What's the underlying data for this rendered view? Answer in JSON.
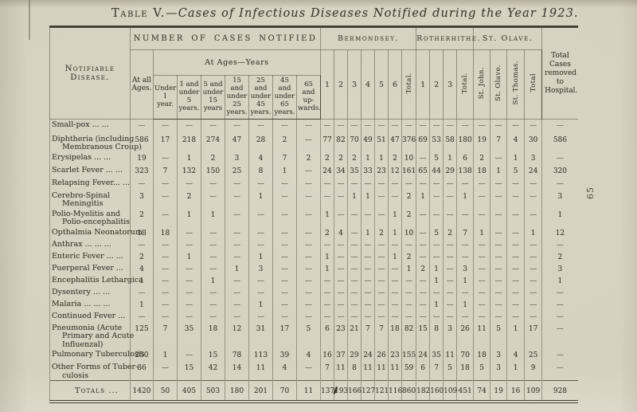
{
  "page": {
    "page_number": "65"
  },
  "title": {
    "prefix": "Table V.",
    "rest": "—Cases of Infectious Diseases Notified during the Year 1923."
  },
  "table": {
    "header": {
      "disease_col": "Notifiable Disease.",
      "cases_notified": "NUMBER OF CASES NOTIFIED",
      "at_all_ages": "At all Ages.",
      "at_ages_years": "At Ages—Years",
      "age_labels": [
        "Under 1 year.",
        "1 and under 5 years.",
        "5 and under 15 years",
        "15 and under 25 years.",
        "25 and under 45 years.",
        "45 and under 65 years.",
        "65 and up- wards."
      ],
      "bermondsey": {
        "label": "Bermondsey.",
        "cols": [
          "1",
          "2",
          "3",
          "4",
          "5",
          "6",
          "Total."
        ]
      },
      "rotherhithe": {
        "label": "Rotherhithe.",
        "cols": [
          "1",
          "2",
          "3",
          "Total."
        ]
      },
      "st_olave": {
        "label": "St. Olave.",
        "cols": [
          "St. John.",
          "St. Olave.",
          "St. Thomas.",
          "Total"
        ]
      },
      "removed": "Total Cases removed to Hospital."
    },
    "rows": [
      {
        "label_lines": [
          "Small-pox ... ..."
        ],
        "cells": [
          "—",
          "—",
          "—",
          "—",
          "—",
          "—",
          "—",
          "—",
          "—",
          "—",
          "—",
          "—",
          "—",
          "—",
          "—",
          "—",
          "—",
          "—",
          "—",
          "—",
          "—",
          "—",
          "—",
          "—"
        ]
      },
      {
        "label_lines": [
          "Diphtheria (including",
          "Membranous Croup)"
        ],
        "cells": [
          "586",
          "17",
          "218",
          "274",
          "47",
          "28",
          "2",
          "—",
          "77",
          "82",
          "70",
          "49",
          "51",
          "47",
          "376",
          "69",
          "53",
          "58",
          "180",
          "19",
          "7",
          "4",
          "30",
          "586"
        ]
      },
      {
        "label_lines": [
          "Erysipelas ... ..."
        ],
        "cells": [
          "19",
          "—",
          "1",
          "2",
          "3",
          "4",
          "7",
          "2",
          "2",
          "2",
          "2",
          "1",
          "1",
          "2",
          "10",
          "—",
          "5",
          "1",
          "6",
          "2",
          "—",
          "1",
          "3",
          "—"
        ]
      },
      {
        "label_lines": [
          "Scarlet Fever ... ..."
        ],
        "cells": [
          "323",
          "7",
          "132",
          "150",
          "25",
          "8",
          "1",
          "—",
          "24",
          "34",
          "35",
          "33",
          "23",
          "12",
          "161",
          "65",
          "44",
          "29",
          "138",
          "18",
          "1",
          "5",
          "24",
          "320"
        ]
      },
      {
        "label_lines": [
          "Relapsing Fever... ..."
        ],
        "cells": [
          "—",
          "—",
          "—",
          "—",
          "—",
          "—",
          "—",
          "—",
          "—",
          "—",
          "—",
          "—",
          "—",
          "—",
          "—",
          "—",
          "—",
          "—",
          "—",
          "—",
          "—",
          "—",
          "—",
          "—"
        ]
      },
      {
        "label_lines": [
          "Cerebro-Spinal",
          "Meningitis"
        ],
        "cells": [
          "3",
          "—",
          "2",
          "—",
          "—",
          "1",
          "—",
          "—",
          "—",
          "—",
          "1",
          "1",
          "—",
          "—",
          "2",
          "1",
          "—",
          "—",
          "1",
          "—",
          "—",
          "—",
          "—",
          "3"
        ]
      },
      {
        "label_lines": [
          "Polio-Myelitis and",
          "Polio-encephalitis"
        ],
        "cells": [
          "2",
          "—",
          "1",
          "1",
          "—",
          "—",
          "—",
          "—",
          "1",
          "—",
          "—",
          "—",
          "—",
          "1",
          "2",
          "—",
          "—",
          "—",
          "—",
          "—",
          "—",
          "—",
          "—",
          "1"
        ]
      },
      {
        "label_lines": [
          "Opthalmia Neonatorum"
        ],
        "cells": [
          "18",
          "18",
          "—",
          "—",
          "—",
          "—",
          "—",
          "—",
          "2",
          "4",
          "—",
          "1",
          "2",
          "1",
          "10",
          "—",
          "5",
          "2",
          "7",
          "1",
          "—",
          "—",
          "1",
          "12"
        ]
      },
      {
        "label_lines": [
          "Anthrax ... ... ..."
        ],
        "cells": [
          "—",
          "—",
          "—",
          "—",
          "—",
          "—",
          "—",
          "—",
          "—",
          "—",
          "—",
          "—",
          "—",
          "—",
          "—",
          "—",
          "—",
          "—",
          "—",
          "—",
          "—",
          "—",
          "—",
          "—"
        ]
      },
      {
        "label_lines": [
          "Enteric Fever ... ..."
        ],
        "cells": [
          "2",
          "—",
          "1",
          "—",
          "—",
          "1",
          "—",
          "—",
          "1",
          "—",
          "—",
          "—",
          "—",
          "1",
          "2",
          "—",
          "—",
          "—",
          "—",
          "—",
          "—",
          "—",
          "—",
          "2"
        ]
      },
      {
        "label_lines": [
          "Puerperal Fever ..."
        ],
        "cells": [
          "4",
          "—",
          "—",
          "—",
          "1",
          "3",
          "—",
          "—",
          "1",
          "—",
          "—",
          "—",
          "—",
          "—",
          "1",
          "2",
          "1",
          "—",
          "3",
          "—",
          "—",
          "—",
          "—",
          "3"
        ]
      },
      {
        "label_lines": [
          "Encephalitis Lethargica"
        ],
        "cells": [
          "1",
          "—",
          "—",
          "1",
          "—",
          "—",
          "—",
          "—",
          "—",
          "—",
          "—",
          "—",
          "—",
          "—",
          "—",
          "—",
          "1",
          "—",
          "1",
          "—",
          "—",
          "—",
          "—",
          "1"
        ]
      },
      {
        "label_lines": [
          "Dysentery ... ..."
        ],
        "cells": [
          "—",
          "—",
          "—",
          "—",
          "—",
          "—",
          "—",
          "—",
          "—",
          "—",
          "—",
          "—",
          "—",
          "—",
          "—",
          "—",
          "—",
          "—",
          "—",
          "—",
          "—",
          "—",
          "—",
          "—"
        ]
      },
      {
        "label_lines": [
          "Malaria ... ... ..."
        ],
        "cells": [
          "1",
          "—",
          "—",
          "—",
          "—",
          "1",
          "—",
          "—",
          "—",
          "—",
          "—",
          "—",
          "—",
          "—",
          "—",
          "—",
          "1",
          "—",
          "1",
          "—",
          "—",
          "—",
          "—",
          "—"
        ]
      },
      {
        "label_lines": [
          "Continued Fever ..."
        ],
        "cells": [
          "—",
          "—",
          "—",
          "—",
          "—",
          "—",
          "—",
          "—",
          "—",
          "—",
          "—",
          "—",
          "—",
          "—",
          "—",
          "—",
          "—",
          "—",
          "—",
          "—",
          "—",
          "—",
          "—",
          "—"
        ]
      },
      {
        "label_lines": [
          "Pneumonia (Acute",
          "Primary and Acute",
          "Influenzal)"
        ],
        "cells": [
          "125",
          "7",
          "35",
          "18",
          "12",
          "31",
          "17",
          "5",
          "6",
          "23",
          "21",
          "7",
          "7",
          "18",
          "82",
          "15",
          "8",
          "3",
          "26",
          "11",
          "5",
          "1",
          "17",
          "—"
        ]
      },
      {
        "label_lines": [
          "Pulmonary Tuberculosis"
        ],
        "cells": [
          "250",
          "1",
          "—",
          "15",
          "78",
          "113",
          "39",
          "4",
          "16",
          "37",
          "29",
          "24",
          "26",
          "23",
          "155",
          "24",
          "35",
          "11",
          "70",
          "18",
          "3",
          "4",
          "25",
          "—"
        ]
      },
      {
        "label_lines": [
          "Other Forms of Tuber-",
          "culosis"
        ],
        "cells": [
          "86",
          "—",
          "15",
          "42",
          "14",
          "11",
          "4",
          "—",
          "7",
          "11",
          "8",
          "11",
          "11",
          "11",
          "59",
          "6",
          "7",
          "5",
          "18",
          "5",
          "3",
          "1",
          "9",
          "—"
        ]
      },
      {
        "totals": true,
        "label_lines": [
          "Totals ..."
        ],
        "cells": [
          "1420",
          "50",
          "405",
          "503",
          "180",
          "201",
          "70",
          "11",
          "137",
          "193",
          "166",
          "127",
          "121",
          "116",
          "860",
          "182",
          "160",
          "109",
          "451",
          "74",
          "19",
          "16",
          "109",
          "928"
        ]
      }
    ]
  }
}
